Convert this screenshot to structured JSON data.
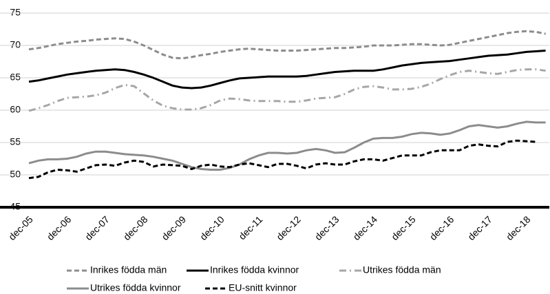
{
  "chart_data": {
    "type": "line",
    "categories": [
      "dec-05",
      null,
      null,
      null,
      "dec-06",
      null,
      null,
      null,
      "dec-07",
      null,
      null,
      null,
      "dec-08",
      null,
      null,
      null,
      "dec-09",
      null,
      null,
      null,
      "dec-10",
      null,
      null,
      null,
      "dec-11",
      null,
      null,
      null,
      "dec-12",
      null,
      null,
      null,
      "dec-13",
      null,
      null,
      null,
      "dec-14",
      null,
      null,
      null,
      "dec-15",
      null,
      null,
      null,
      "dec-16",
      null,
      null,
      null,
      "dec-17",
      null,
      null,
      null,
      "dec-18",
      null,
      null
    ],
    "ylim": [
      45,
      75
    ],
    "yticks": [
      45,
      50,
      55,
      60,
      65,
      70,
      75
    ],
    "grid": true,
    "series": [
      {
        "name": "Inrikes födda män",
        "color": "#8c8c8c",
        "style": "dashed",
        "values": [
          69.4,
          69.6,
          69.9,
          70.2,
          70.4,
          70.6,
          70.7,
          70.9,
          71.0,
          71.1,
          71.0,
          70.6,
          70.0,
          69.3,
          68.6,
          68.1,
          68.0,
          68.2,
          68.5,
          68.7,
          69.0,
          69.2,
          69.4,
          69.5,
          69.4,
          69.3,
          69.2,
          69.2,
          69.2,
          69.3,
          69.4,
          69.5,
          69.6,
          69.6,
          69.7,
          69.8,
          70.0,
          70.0,
          70.0,
          70.1,
          70.2,
          70.2,
          70.1,
          70.0,
          70.1,
          70.4,
          70.7,
          71.0,
          71.3,
          71.6,
          71.9,
          72.1,
          72.2,
          72.1,
          71.8
        ]
      },
      {
        "name": "Inrikes födda kvinnor",
        "color": "#000000",
        "style": "solid",
        "values": [
          64.4,
          64.6,
          64.9,
          65.2,
          65.5,
          65.7,
          65.9,
          66.1,
          66.2,
          66.3,
          66.2,
          65.9,
          65.5,
          65.0,
          64.4,
          63.8,
          63.5,
          63.4,
          63.5,
          63.8,
          64.2,
          64.6,
          64.9,
          65.0,
          65.1,
          65.2,
          65.2,
          65.2,
          65.2,
          65.3,
          65.5,
          65.7,
          65.9,
          66.0,
          66.1,
          66.1,
          66.1,
          66.3,
          66.6,
          66.9,
          67.1,
          67.3,
          67.4,
          67.5,
          67.6,
          67.8,
          68.0,
          68.2,
          68.4,
          68.5,
          68.6,
          68.8,
          69.0,
          69.1,
          69.2
        ]
      },
      {
        "name": "Utrikes födda män",
        "color": "#a6a6a6",
        "style": "dashdot",
        "values": [
          59.9,
          60.3,
          60.8,
          61.4,
          61.9,
          62.0,
          62.1,
          62.3,
          62.7,
          63.4,
          63.9,
          63.7,
          62.6,
          61.5,
          60.7,
          60.3,
          60.1,
          60.1,
          60.3,
          60.8,
          61.5,
          61.8,
          61.7,
          61.5,
          61.4,
          61.4,
          61.4,
          61.3,
          61.3,
          61.5,
          61.8,
          61.9,
          62.0,
          62.5,
          63.2,
          63.6,
          63.7,
          63.5,
          63.2,
          63.2,
          63.3,
          63.6,
          64.1,
          64.8,
          65.4,
          65.9,
          66.1,
          65.9,
          65.7,
          65.6,
          65.9,
          66.2,
          66.3,
          66.3,
          66.1
        ]
      },
      {
        "name": "Utrikes födda kvinnor",
        "color": "#8c8c8c",
        "style": "solid",
        "values": [
          51.8,
          52.2,
          52.4,
          52.4,
          52.5,
          52.8,
          53.3,
          53.6,
          53.6,
          53.4,
          53.2,
          53.1,
          53.0,
          52.8,
          52.5,
          52.2,
          51.7,
          51.2,
          50.9,
          50.8,
          50.8,
          51.1,
          51.6,
          52.4,
          53.0,
          53.4,
          53.4,
          53.3,
          53.4,
          53.8,
          54.0,
          53.8,
          53.4,
          53.5,
          54.2,
          55.0,
          55.6,
          55.7,
          55.7,
          55.9,
          56.3,
          56.5,
          56.4,
          56.2,
          56.4,
          56.9,
          57.5,
          57.7,
          57.5,
          57.3,
          57.5,
          57.9,
          58.2,
          58.1,
          58.1
        ]
      },
      {
        "name": "EU-snitt kvinnor",
        "color": "#000000",
        "style": "dashed",
        "values": [
          49.5,
          49.7,
          50.4,
          50.8,
          50.7,
          50.5,
          51.0,
          51.5,
          51.6,
          51.4,
          51.9,
          52.2,
          52.0,
          51.3,
          51.6,
          51.5,
          51.4,
          50.9,
          51.4,
          51.6,
          51.3,
          51.2,
          51.6,
          51.8,
          51.5,
          51.2,
          51.7,
          51.7,
          51.4,
          51.0,
          51.6,
          51.8,
          51.6,
          51.6,
          52.1,
          52.4,
          52.4,
          52.2,
          52.6,
          53.0,
          53.0,
          53.0,
          53.5,
          53.8,
          53.8,
          53.8,
          54.5,
          54.7,
          54.5,
          54.4,
          55.1,
          55.3,
          55.2,
          55.1,
          null
        ]
      }
    ]
  }
}
